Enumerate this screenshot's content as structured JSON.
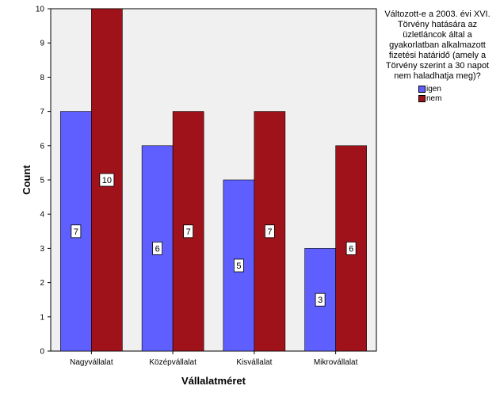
{
  "chart_data": {
    "type": "bar",
    "categories": [
      "Nagyvállalat",
      "Középvállalat",
      "Kisvállalat",
      "Mikrovállalat"
    ],
    "series": [
      {
        "name": "igen",
        "values": [
          7,
          6,
          5,
          3
        ],
        "color": "#5f5fff"
      },
      {
        "name": "nem",
        "values": [
          10,
          7,
          7,
          6
        ],
        "color": "#a0121a"
      }
    ],
    "xlabel": "Vállalatméret",
    "ylabel": "Count",
    "ylim": [
      0,
      10
    ],
    "yticks": [
      0,
      1,
      2,
      3,
      4,
      5,
      6,
      7,
      8,
      9,
      10
    ],
    "grid": false,
    "legend_title": "Változott-e a 2003. évi XVI. Törvény hatására az üzletláncok által a gyakorlatban alkalmazott fizetési határidő (amely a Törvény szerint a 30 napot nem haladhatja meg)?",
    "legend_position": "right",
    "plot_background": "#f0f0f0"
  }
}
